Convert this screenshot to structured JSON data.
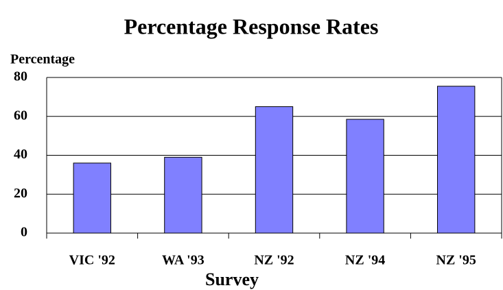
{
  "chart_data": {
    "type": "bar",
    "title": "Percentage Response Rates",
    "y_label": "Percentage",
    "x_label": "Survey",
    "categories": [
      "VIC '92",
      "WA '93",
      "NZ '92",
      "NZ '94",
      "NZ '95"
    ],
    "values": [
      36,
      39,
      65,
      58.5,
      75.5
    ],
    "color": "#8080ff",
    "ylim": [
      0,
      80
    ],
    "yticks": [
      0,
      20,
      40,
      60,
      80
    ],
    "grid": true
  }
}
